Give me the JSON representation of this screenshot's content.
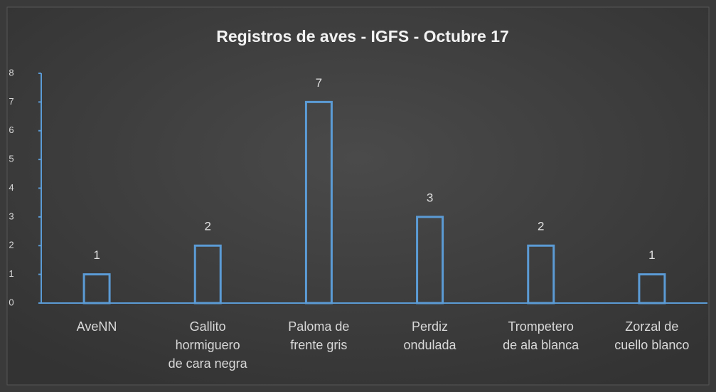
{
  "chart_data": {
    "type": "bar",
    "title": "Registros de aves - IGFS - Octubre 17",
    "categories": [
      "AveNN",
      "Gallito\nhormiguero\nde cara negra",
      "Paloma de\nfrente gris",
      "Perdiz\nondulada",
      "Trompetero\nde ala blanca",
      "Zorzal de\ncuello blanco"
    ],
    "values": [
      1,
      2,
      7,
      3,
      2,
      1
    ],
    "color": "#5b9bd5",
    "ylim": [
      0,
      8
    ],
    "yticks": [
      0,
      1,
      2,
      3,
      4,
      5,
      6,
      7,
      8
    ],
    "grid": false
  }
}
